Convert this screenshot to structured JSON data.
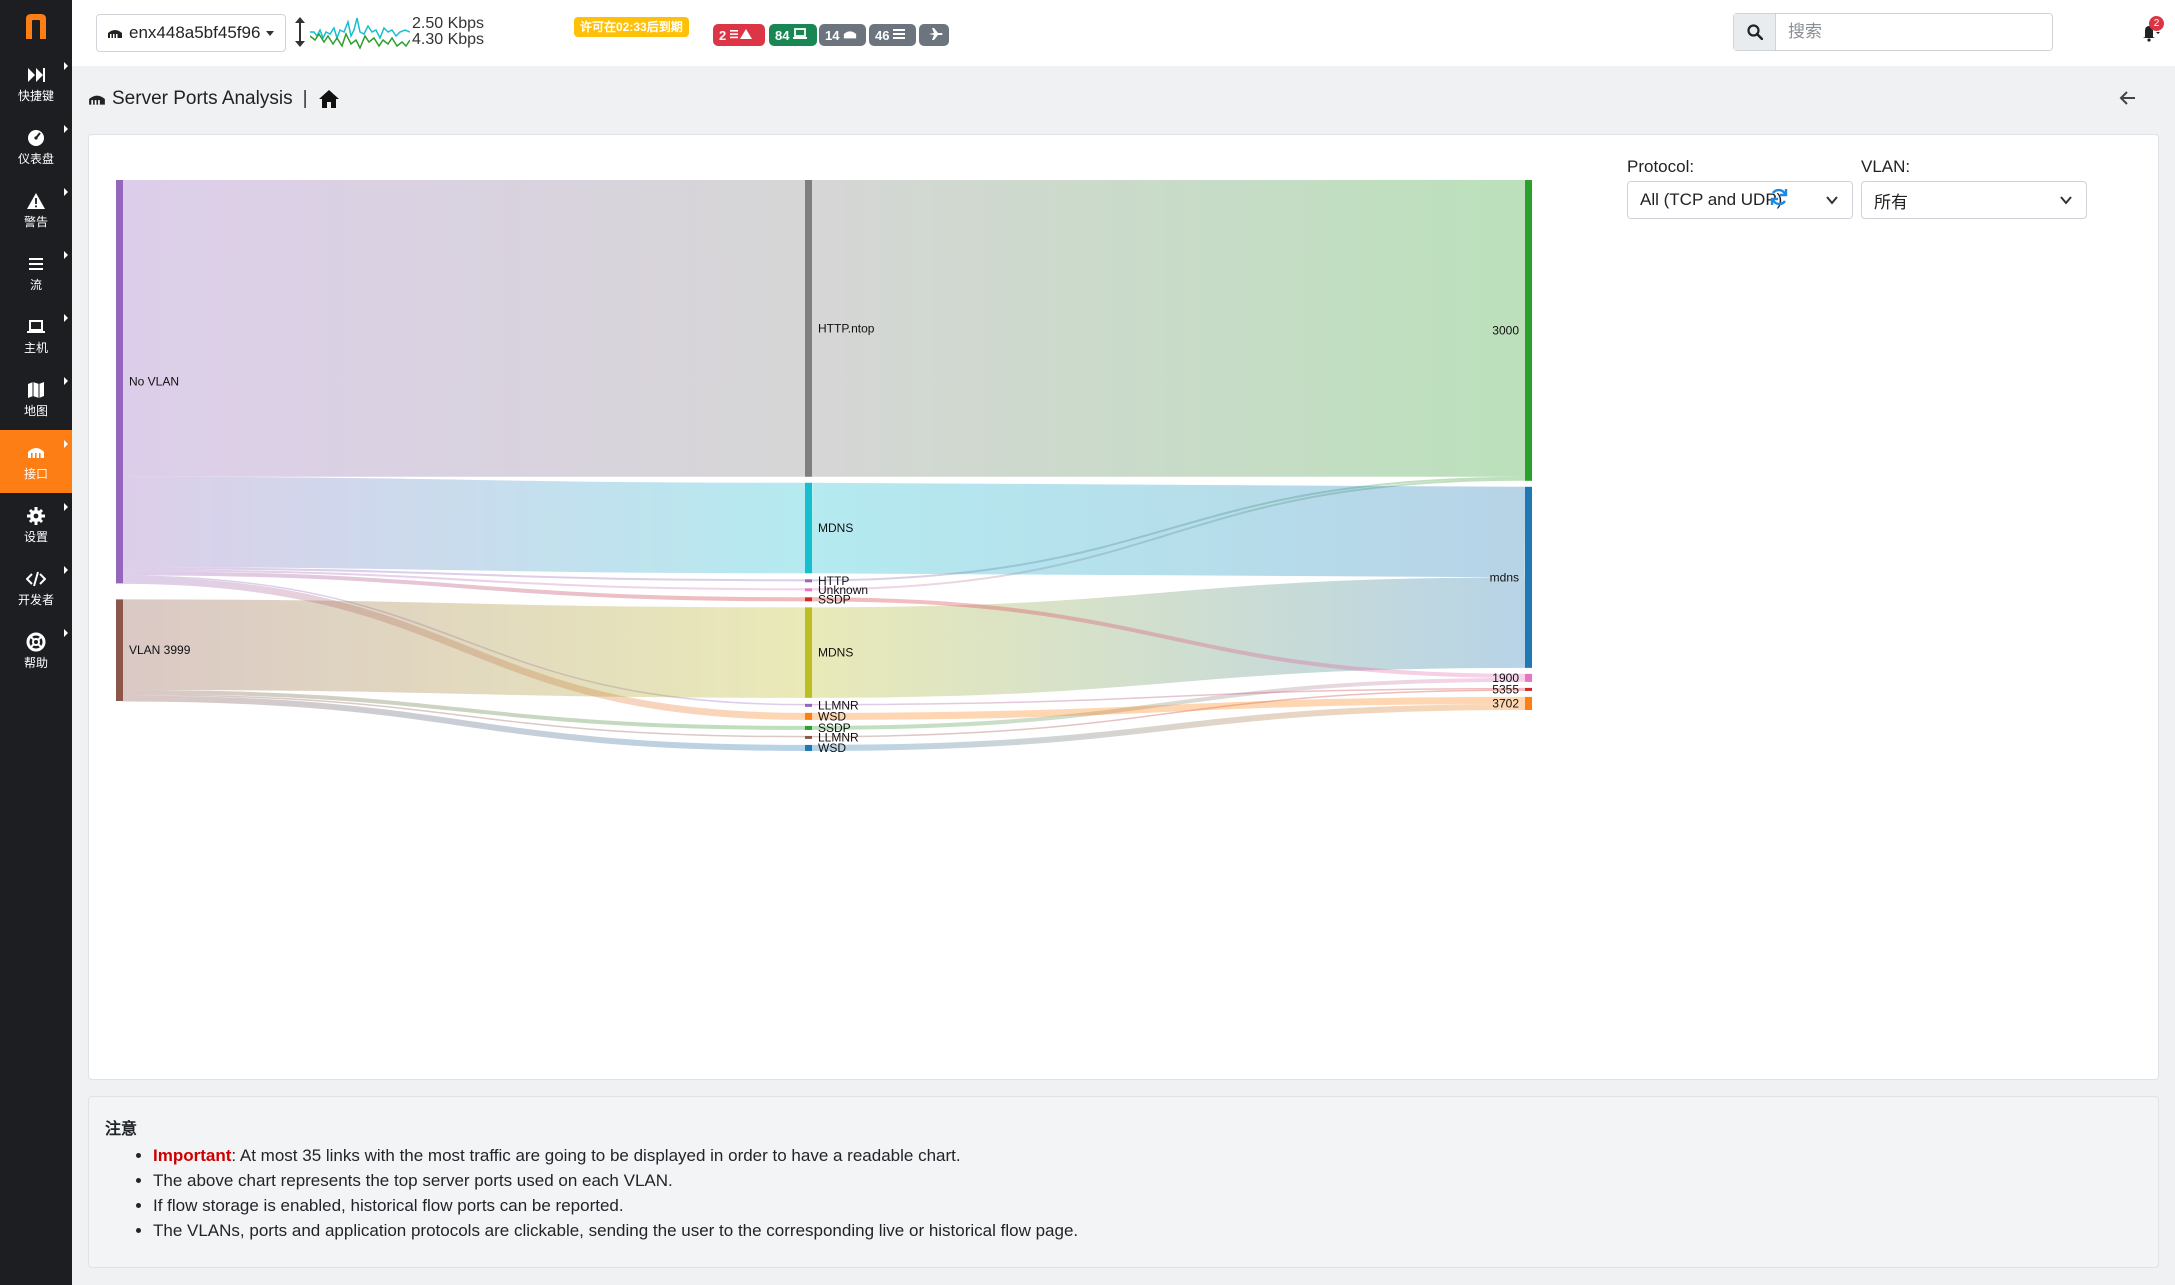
{
  "topbar": {
    "interface": "enx448a5bf45f96",
    "rate_up": "2.50 Kbps",
    "rate_down": "4.30 Kbps",
    "license_badge": "许可在02:33后到期",
    "badges": [
      {
        "count": "2",
        "icon": "alert-icon",
        "color": "#dc3545"
      },
      {
        "count": "84",
        "icon": "laptop-icon",
        "color": "#198754"
      },
      {
        "count": "14",
        "icon": "interface-icon",
        "color": "#6c757d"
      },
      {
        "count": "46",
        "icon": "flows-icon",
        "color": "#6c757d"
      },
      {
        "count": "",
        "icon": "plane-icon",
        "color": "#6c757d"
      }
    ],
    "search_placeholder": "搜索",
    "notifications": "2"
  },
  "sidebar": {
    "items": [
      {
        "label": "快捷键",
        "icon": "fast-forward-icon"
      },
      {
        "label": "仪表盘",
        "icon": "gauge-icon"
      },
      {
        "label": "警告",
        "icon": "warning-icon"
      },
      {
        "label": "流",
        "icon": "list-icon"
      },
      {
        "label": "主机",
        "icon": "laptop-icon"
      },
      {
        "label": "地图",
        "icon": "map-icon"
      },
      {
        "label": "接口",
        "icon": "interface-icon",
        "active": true
      },
      {
        "label": "设置",
        "icon": "cog-icon"
      },
      {
        "label": "开发者",
        "icon": "code-icon"
      },
      {
        "label": "帮助",
        "icon": "lifebuoy-icon"
      }
    ]
  },
  "breadcrumb": {
    "title": "Server Ports Analysis"
  },
  "filters": {
    "protocol_label": "Protocol:",
    "protocol_value": "All (TCP and UDP)",
    "vlan_label": "VLAN:",
    "vlan_value": "所有"
  },
  "chart_data": {
    "type": "sankey",
    "nodes": [
      {
        "id": "novlan",
        "label": "No VLAN",
        "column": 0,
        "color": "#9467bd"
      },
      {
        "id": "vlan3999",
        "label": "VLAN 3999",
        "column": 0,
        "color": "#8c564b"
      },
      {
        "id": "httpntop",
        "label": "HTTP.ntop",
        "column": 1,
        "color": "#7f7f7f"
      },
      {
        "id": "mdns1",
        "label": "MDNS",
        "column": 1,
        "color": "#17becf"
      },
      {
        "id": "http",
        "label": "HTTP",
        "column": 1,
        "color": "#9467bd"
      },
      {
        "id": "unknown",
        "label": "Unknown",
        "column": 1,
        "color": "#e377c2"
      },
      {
        "id": "ssdp1",
        "label": "SSDP",
        "column": 1,
        "color": "#d62728"
      },
      {
        "id": "mdns2",
        "label": "MDNS",
        "column": 1,
        "color": "#bcbd22"
      },
      {
        "id": "llmnr1",
        "label": "LLMNR",
        "column": 1,
        "color": "#9467bd"
      },
      {
        "id": "wsd1",
        "label": "WSD",
        "column": 1,
        "color": "#ff7f0e"
      },
      {
        "id": "ssdp2",
        "label": "SSDP",
        "column": 1,
        "color": "#2ca02c"
      },
      {
        "id": "llmnr2",
        "label": "LLMNR",
        "column": 1,
        "color": "#8c564b"
      },
      {
        "id": "wsd2",
        "label": "WSD",
        "column": 1,
        "color": "#1f77b4"
      },
      {
        "id": "p3000",
        "label": "3000",
        "column": 2,
        "color": "#2ca02c"
      },
      {
        "id": "pmdns",
        "label": "mdns",
        "column": 2,
        "color": "#1f77b4"
      },
      {
        "id": "p1900",
        "label": "1900",
        "column": 2,
        "color": "#e377c2"
      },
      {
        "id": "p5355",
        "label": "5355",
        "column": 2,
        "color": "#d62728"
      },
      {
        "id": "p3702",
        "label": "3702",
        "column": 2,
        "color": "#ff7f0e"
      }
    ],
    "links": [
      {
        "source": "novlan",
        "target": "httpntop",
        "value": 295
      },
      {
        "source": "novlan",
        "target": "mdns1",
        "value": 90
      },
      {
        "source": "novlan",
        "target": "http",
        "value": 2
      },
      {
        "source": "novlan",
        "target": "unknown",
        "value": 2
      },
      {
        "source": "novlan",
        "target": "ssdp1",
        "value": 4
      },
      {
        "source": "novlan",
        "target": "llmnr1",
        "value": 1
      },
      {
        "source": "novlan",
        "target": "wsd1",
        "value": 7
      },
      {
        "source": "vlan3999",
        "target": "mdns2",
        "value": 90
      },
      {
        "source": "vlan3999",
        "target": "ssdp2",
        "value": 4
      },
      {
        "source": "vlan3999",
        "target": "llmnr2",
        "value": 1
      },
      {
        "source": "vlan3999",
        "target": "wsd2",
        "value": 6
      },
      {
        "source": "httpntop",
        "target": "p3000",
        "value": 295
      },
      {
        "source": "http",
        "target": "p3000",
        "value": 2
      },
      {
        "source": "unknown",
        "target": "p3000",
        "value": 2
      },
      {
        "source": "mdns1",
        "target": "pmdns",
        "value": 90
      },
      {
        "source": "mdns2",
        "target": "pmdns",
        "value": 90
      },
      {
        "source": "ssdp1",
        "target": "p1900",
        "value": 4
      },
      {
        "source": "ssdp2",
        "target": "p1900",
        "value": 4
      },
      {
        "source": "llmnr1",
        "target": "p5355",
        "value": 1
      },
      {
        "source": "llmnr2",
        "target": "p5355",
        "value": 1
      },
      {
        "source": "wsd1",
        "target": "p3702",
        "value": 7
      },
      {
        "source": "wsd2",
        "target": "p3702",
        "value": 6
      }
    ]
  },
  "notes": {
    "title": "注意",
    "important_label": "Important",
    "items": [
      ": At most 35 links with the most traffic are going to be displayed in order to have a readable chart.",
      "The above chart represents the top server ports used on each VLAN.",
      "If flow storage is enabled, historical flow ports can be reported.",
      "The VLANs, ports and application protocols are clickable, sending the user to the corresponding live or historical flow page."
    ]
  }
}
